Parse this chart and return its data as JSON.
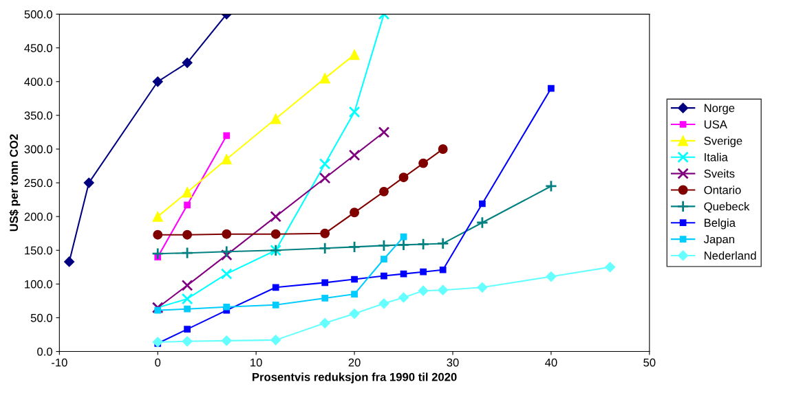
{
  "chart_data": {
    "type": "line",
    "xlabel": "Prosentvis reduksjon fra 1990 til 2020",
    "ylabel": "US$ per tonn CO2",
    "xlim": [
      -10,
      50
    ],
    "xticks": [
      -10,
      0,
      10,
      20,
      30,
      40,
      50
    ],
    "ylim": [
      0,
      500
    ],
    "yticks": [
      {
        "value": 0,
        "label": "0.0"
      },
      {
        "value": 50,
        "label": "50.0"
      },
      {
        "value": 100,
        "label": "100.0"
      },
      {
        "value": 150,
        "label": "150.0"
      },
      {
        "value": 200,
        "label": "200.0"
      },
      {
        "value": 250,
        "label": "250.0"
      },
      {
        "value": 300,
        "label": "300.0"
      },
      {
        "value": 350,
        "label": "350.0"
      },
      {
        "value": 400,
        "label": "400.0"
      },
      {
        "value": 450,
        "label": "450.0"
      },
      {
        "value": 500,
        "label": "500.0"
      }
    ],
    "grid": false,
    "legend": "right",
    "series": [
      {
        "name": "Norge",
        "color": "#000080",
        "marker": "diamond",
        "x": [
          -9,
          -7,
          0,
          3,
          7
        ],
        "values": [
          133,
          250,
          400,
          428,
          500
        ]
      },
      {
        "name": "USA",
        "color": "#ff00ff",
        "marker": "square",
        "x": [
          0,
          3,
          7
        ],
        "values": [
          140,
          217,
          320
        ]
      },
      {
        "name": "Sverige",
        "color": "#ffff00",
        "marker": "triangle",
        "x": [
          0,
          3,
          7,
          12,
          17,
          20
        ],
        "values": [
          200,
          236,
          285,
          345,
          405,
          440
        ]
      },
      {
        "name": "Italia",
        "color": "#00ffff",
        "marker": "cross",
        "x": [
          0,
          3,
          7,
          12,
          17,
          20,
          23
        ],
        "values": [
          65,
          78,
          115,
          150,
          278,
          355,
          500
        ]
      },
      {
        "name": "Sveits",
        "color": "#800080",
        "marker": "cross",
        "x": [
          0,
          3,
          7,
          12,
          17,
          20,
          23
        ],
        "values": [
          65,
          98,
          143,
          200,
          257,
          291,
          325
        ]
      },
      {
        "name": "Ontario",
        "color": "#800000",
        "marker": "circle",
        "x": [
          0,
          3,
          7,
          12,
          17,
          20,
          23,
          25,
          27,
          29
        ],
        "values": [
          173,
          173,
          174,
          174,
          175,
          206,
          237,
          258,
          279,
          300
        ]
      },
      {
        "name": "Quebeck",
        "color": "#008080",
        "marker": "plus",
        "x": [
          0,
          3,
          7,
          12,
          17,
          20,
          23,
          25,
          27,
          29,
          33,
          40
        ],
        "values": [
          145,
          146,
          148,
          150,
          153,
          155,
          157,
          158,
          159,
          160,
          191,
          245
        ]
      },
      {
        "name": "Belgia",
        "color": "#0000ff",
        "marker": "square",
        "x": [
          0,
          3,
          7,
          12,
          17,
          20,
          23,
          25,
          27,
          29,
          33,
          40
        ],
        "values": [
          12,
          33,
          61,
          95,
          102,
          107,
          112,
          115,
          118,
          121,
          219,
          390
        ]
      },
      {
        "name": "Japan",
        "color": "#00ccff",
        "marker": "square",
        "x": [
          0,
          3,
          7,
          12,
          17,
          20,
          23,
          25
        ],
        "values": [
          61,
          63,
          66,
          69,
          79,
          85,
          137,
          170
        ]
      },
      {
        "name": "Nederland",
        "color": "#66ffff",
        "marker": "diamond",
        "x": [
          0,
          3,
          7,
          12,
          17,
          20,
          23,
          25,
          27,
          29,
          33,
          40,
          46
        ],
        "values": [
          14,
          15,
          16,
          17,
          42,
          56,
          71,
          80,
          90,
          91,
          95,
          111,
          125
        ]
      }
    ]
  }
}
